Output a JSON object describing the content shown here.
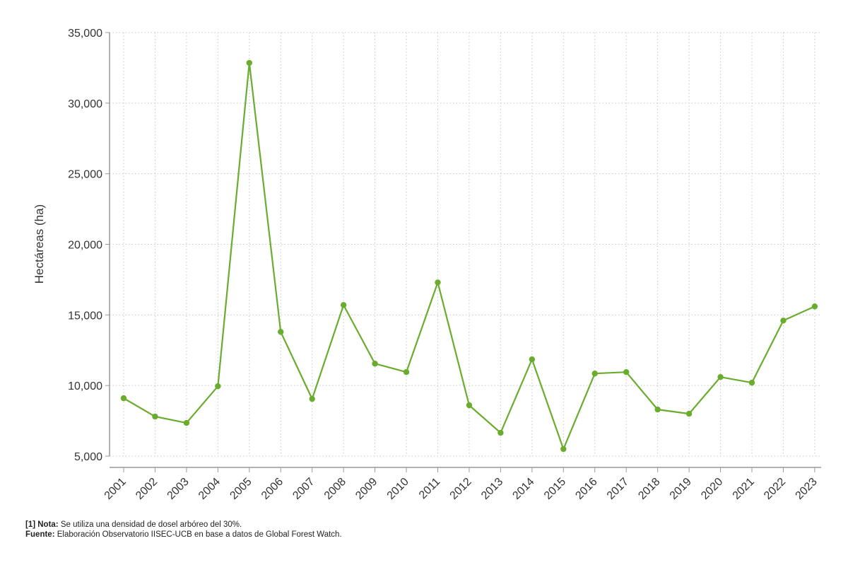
{
  "chart_data": {
    "type": "line",
    "title": "",
    "xlabel": "",
    "ylabel": "Hectáreas (ha)",
    "x": [
      "2001",
      "2002",
      "2003",
      "2004",
      "2005",
      "2006",
      "2007",
      "2008",
      "2009",
      "2010",
      "2011",
      "2012",
      "2013",
      "2014",
      "2015",
      "2016",
      "2017",
      "2018",
      "2019",
      "2020",
      "2021",
      "2022",
      "2023"
    ],
    "series": [
      {
        "color": "#6aac2e",
        "values": [
          9100,
          7800,
          7350,
          9950,
          32850,
          13800,
          9050,
          15700,
          11550,
          10950,
          17300,
          8600,
          6650,
          11850,
          5500,
          10850,
          10950,
          8300,
          8000,
          10600,
          10200,
          14600,
          15600
        ]
      }
    ],
    "ylim": [
      5000,
      35000
    ],
    "yticks": [
      5000,
      10000,
      15000,
      20000,
      25000,
      30000,
      35000
    ],
    "ytick_labels": [
      "5,000",
      "10,000",
      "15,000",
      "20,000",
      "25,000",
      "30,000",
      "35,000"
    ],
    "grid": true,
    "legend": "none"
  },
  "footnote": {
    "note_label": "[1] Nota:",
    "note_text": " Se utiliza una densidad de dosel arbóreo del 30%.",
    "source_label": "Fuente:",
    "source_text": " Elaboración Observatorio IISEC-UCB en base a datos de Global Forest Watch."
  }
}
